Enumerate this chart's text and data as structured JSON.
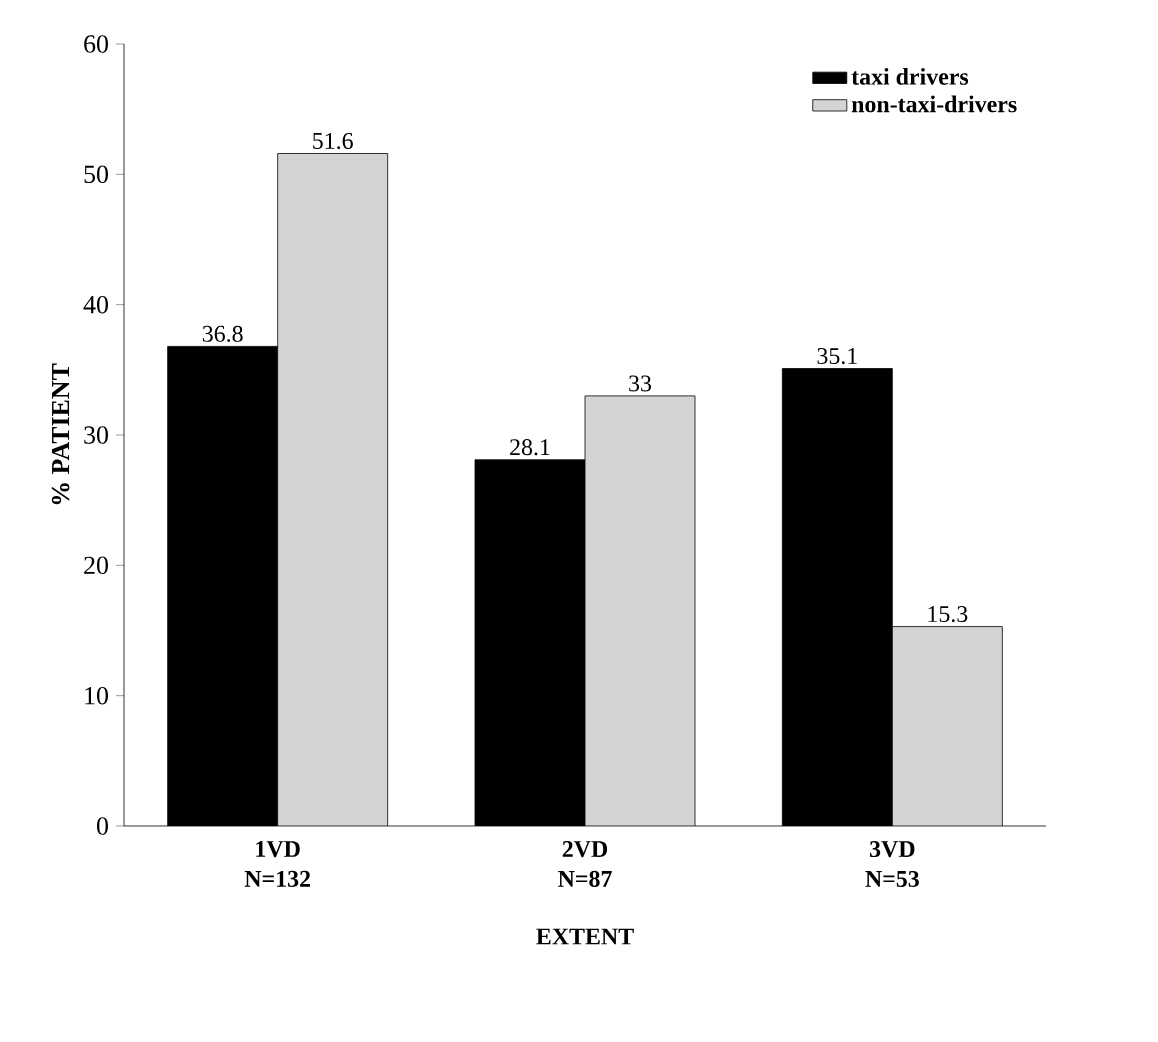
{
  "chart_data": {
    "type": "bar",
    "xlabel": "EXTENT",
    "ylabel": "% PATIENT",
    "categories": [
      "1VD N=132",
      "2VD N=87",
      "3VD N=53"
    ],
    "series": [
      {
        "name": "taxi drivers",
        "color": "#000000",
        "values": [
          36.8,
          28.1,
          35.1
        ]
      },
      {
        "name": "non-taxi-drivers",
        "color": "#d4d4d4",
        "values": [
          51.6,
          33,
          15.3
        ]
      }
    ],
    "ylim": [
      0,
      60
    ],
    "yticks": [
      0,
      10,
      20,
      30,
      40,
      50,
      60
    ],
    "data_labels": true,
    "legend": "top right",
    "grid": false
  }
}
